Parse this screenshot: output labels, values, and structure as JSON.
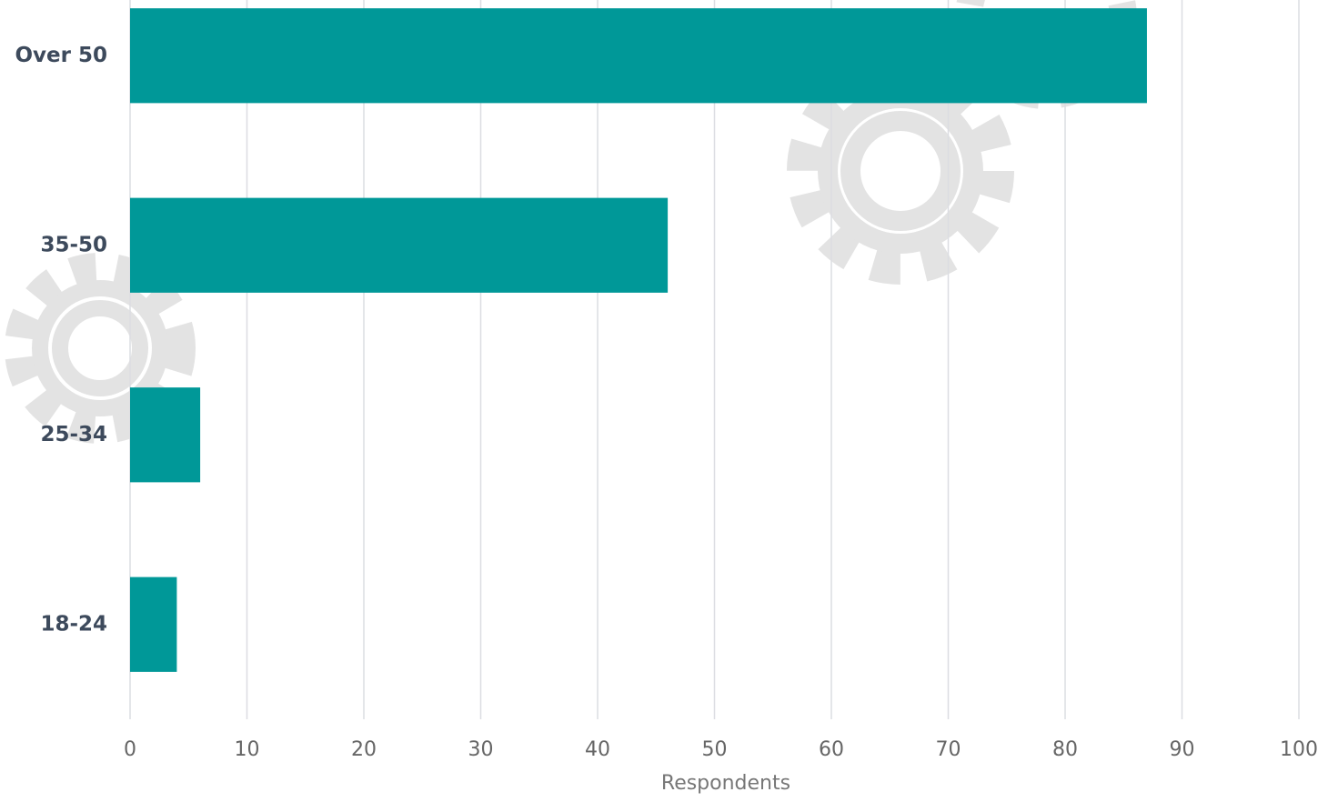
{
  "chart_data": {
    "type": "bar",
    "orientation": "horizontal",
    "categories": [
      "Over 50",
      "35-50",
      "25-34",
      "18-24"
    ],
    "values": [
      87,
      46,
      6,
      4
    ],
    "color": "#009898",
    "xlabel": "Respondents",
    "xlim": [
      0,
      100
    ],
    "xticks": [
      0,
      10,
      20,
      30,
      40,
      50,
      60,
      70,
      80,
      90,
      100
    ],
    "grid": true
  }
}
